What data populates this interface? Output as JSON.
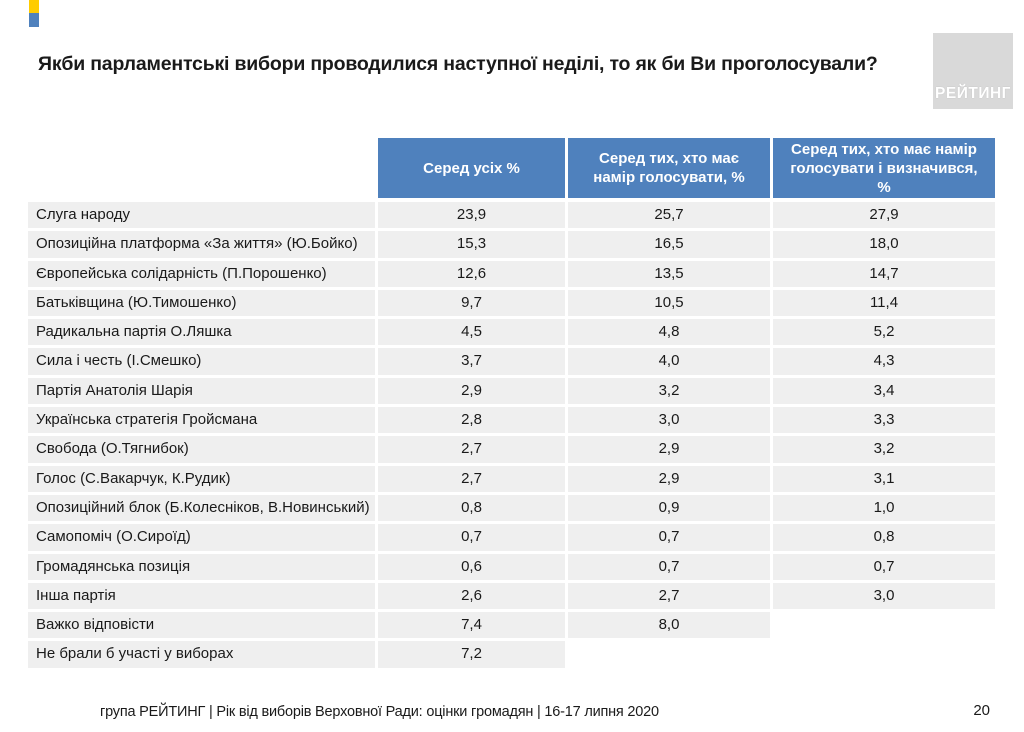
{
  "slide": {
    "title": "Якби парламентські вибори проводилися наступної неділі, то як би Ви проголосували?",
    "footer": "група РЕЙТИНГ | Рік від виборів Верховної Ради: оцінки громадян | 16-17 липня 2020",
    "page_number": "20",
    "logo_text": "РЕЙТИНГ"
  },
  "colors": {
    "header_blue": "#4f81bd",
    "row_gray": "#efefef",
    "logo_gray": "#d9d9d9",
    "flag_yellow": "#ffcc00",
    "flag_blue": "#4f81bd"
  },
  "table": {
    "columns": [
      "Серед усіх %",
      "Серед тих, хто має намір голосувати, %",
      "Серед тих, хто має намір голосувати і визначився, %"
    ],
    "rows": [
      {
        "label": "Слуга народу",
        "all": "23,9",
        "intend": "25,7",
        "decided": "27,9"
      },
      {
        "label": "Опозиційна платформа «За життя» (Ю.Бойко)",
        "all": "15,3",
        "intend": "16,5",
        "decided": "18,0"
      },
      {
        "label": "Європейська солідарність (П.Порошенко)",
        "all": "12,6",
        "intend": "13,5",
        "decided": "14,7"
      },
      {
        "label": "Батьківщина (Ю.Тимошенко)",
        "all": "9,7",
        "intend": "10,5",
        "decided": "11,4"
      },
      {
        "label": "Радикальна партія О.Ляшка",
        "all": "4,5",
        "intend": "4,8",
        "decided": "5,2"
      },
      {
        "label": "Сила і честь (І.Смешко)",
        "all": "3,7",
        "intend": "4,0",
        "decided": "4,3"
      },
      {
        "label": "Партія Анатолія Шарія",
        "all": "2,9",
        "intend": "3,2",
        "decided": "3,4"
      },
      {
        "label": "Українська стратегія Гройсмана",
        "all": "2,8",
        "intend": "3,0",
        "decided": "3,3"
      },
      {
        "label": "Свобода (О.Тягнибок)",
        "all": "2,7",
        "intend": "2,9",
        "decided": "3,2"
      },
      {
        "label": "Голос (С.Вакарчук, К.Рудик)",
        "all": "2,7",
        "intend": "2,9",
        "decided": "3,1"
      },
      {
        "label": "Опозиційний блок (Б.Колесніков, В.Новинський)",
        "all": "0,8",
        "intend": "0,9",
        "decided": "1,0"
      },
      {
        "label": "Самопоміч (О.Сироїд)",
        "all": "0,7",
        "intend": "0,7",
        "decided": "0,8"
      },
      {
        "label": "Громадянська позиція",
        "all": "0,6",
        "intend": "0,7",
        "decided": "0,7"
      },
      {
        "label": "Інша партія",
        "all": "2,6",
        "intend": "2,7",
        "decided": "3,0"
      },
      {
        "label": "Важко відповісти",
        "all": "7,4",
        "intend": "8,0",
        "decided": null
      },
      {
        "label": "Не брали б участі у виборах",
        "all": "7,2",
        "intend": null,
        "decided": null
      }
    ]
  },
  "chart_data": {
    "type": "table",
    "title": "Якби парламентські вибори проводилися наступної неділі, то як би Ви проголосували?",
    "categories": [
      "Слуга народу",
      "Опозиційна платформа «За життя» (Ю.Бойко)",
      "Європейська солідарність (П.Порошенко)",
      "Батьківщина (Ю.Тимошенко)",
      "Радикальна партія О.Ляшка",
      "Сила і честь (І.Смешко)",
      "Партія Анатолія Шарія",
      "Українська стратегія Гройсмана",
      "Свобода (О.Тягнибок)",
      "Голос (С.Вакарчук, К.Рудик)",
      "Опозиційний блок (Б.Колесніков, В.Новинський)",
      "Самопоміч (О.Сироїд)",
      "Громадянська позиція",
      "Інша партія",
      "Важко відповісти",
      "Не брали б участі у виборах"
    ],
    "series": [
      {
        "name": "Серед усіх %",
        "values": [
          23.9,
          15.3,
          12.6,
          9.7,
          4.5,
          3.7,
          2.9,
          2.8,
          2.7,
          2.7,
          0.8,
          0.7,
          0.6,
          2.6,
          7.4,
          7.2
        ]
      },
      {
        "name": "Серед тих, хто має намір голосувати, %",
        "values": [
          25.7,
          16.5,
          13.5,
          10.5,
          4.8,
          4.0,
          3.2,
          3.0,
          2.9,
          2.9,
          0.9,
          0.7,
          0.7,
          2.7,
          8.0,
          null
        ]
      },
      {
        "name": "Серед тих, хто має намір голосувати і визначився, %",
        "values": [
          27.9,
          18.0,
          14.7,
          11.4,
          5.2,
          4.3,
          3.4,
          3.3,
          3.2,
          3.1,
          1.0,
          0.8,
          0.7,
          3.0,
          null,
          null
        ]
      }
    ]
  }
}
